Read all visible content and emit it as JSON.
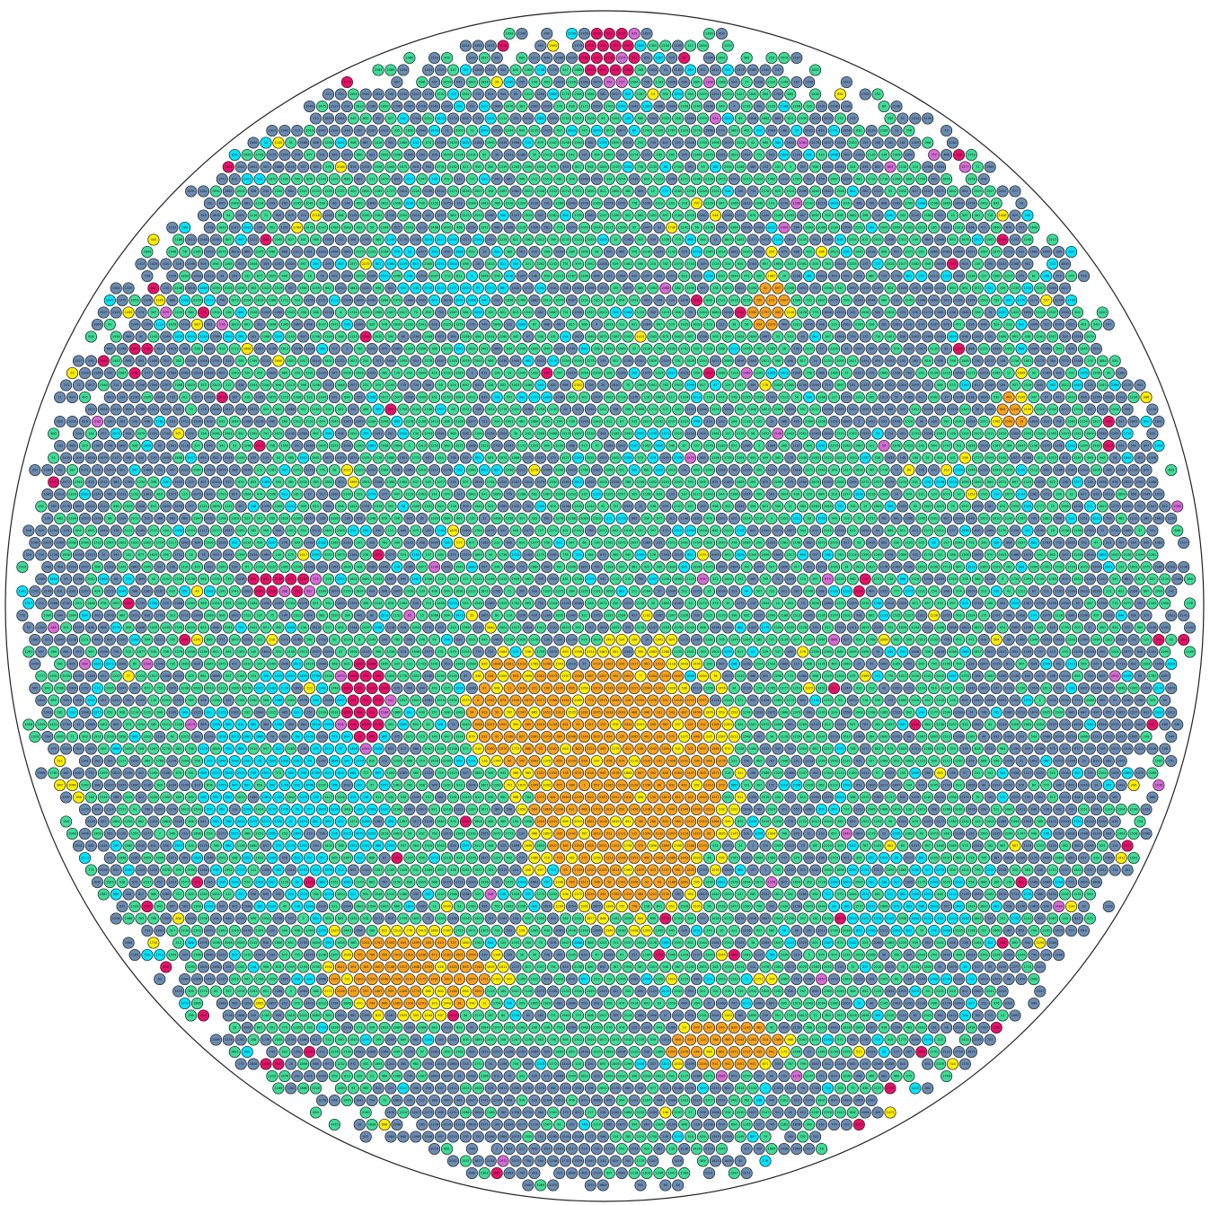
{
  "diagram": {
    "type": "circular-node-grid",
    "legend_categories": [
      {
        "key": "green",
        "color": "#3ddc97"
      },
      {
        "key": "steel",
        "color": "#6a8cb3"
      },
      {
        "key": "cyan",
        "color": "#00e5ff"
      },
      {
        "key": "yellow",
        "color": "#ffee00"
      },
      {
        "key": "orange",
        "color": "#f7a21b"
      },
      {
        "key": "magenta",
        "color": "#e8106a"
      },
      {
        "key": "violet",
        "color": "#d66bd6"
      }
    ],
    "boundary_stroke": "#222222",
    "node_stroke": "#1b1b1b",
    "clusters": [
      {
        "category": "orange",
        "label": "central-orange-cluster"
      },
      {
        "category": "orange",
        "label": "lower-left-orange-cluster"
      },
      {
        "category": "orange",
        "label": "lower-right-orange-cluster"
      },
      {
        "category": "orange",
        "label": "upper-right-orange-cluster"
      },
      {
        "category": "magenta",
        "label": "top-magenta-cluster"
      },
      {
        "category": "magenta",
        "label": "left-magenta-cluster"
      }
    ],
    "sample_node_labels": [
      "2151",
      "1937",
      "2006",
      "1420",
      "1315",
      "853",
      "9",
      "3"
    ]
  }
}
